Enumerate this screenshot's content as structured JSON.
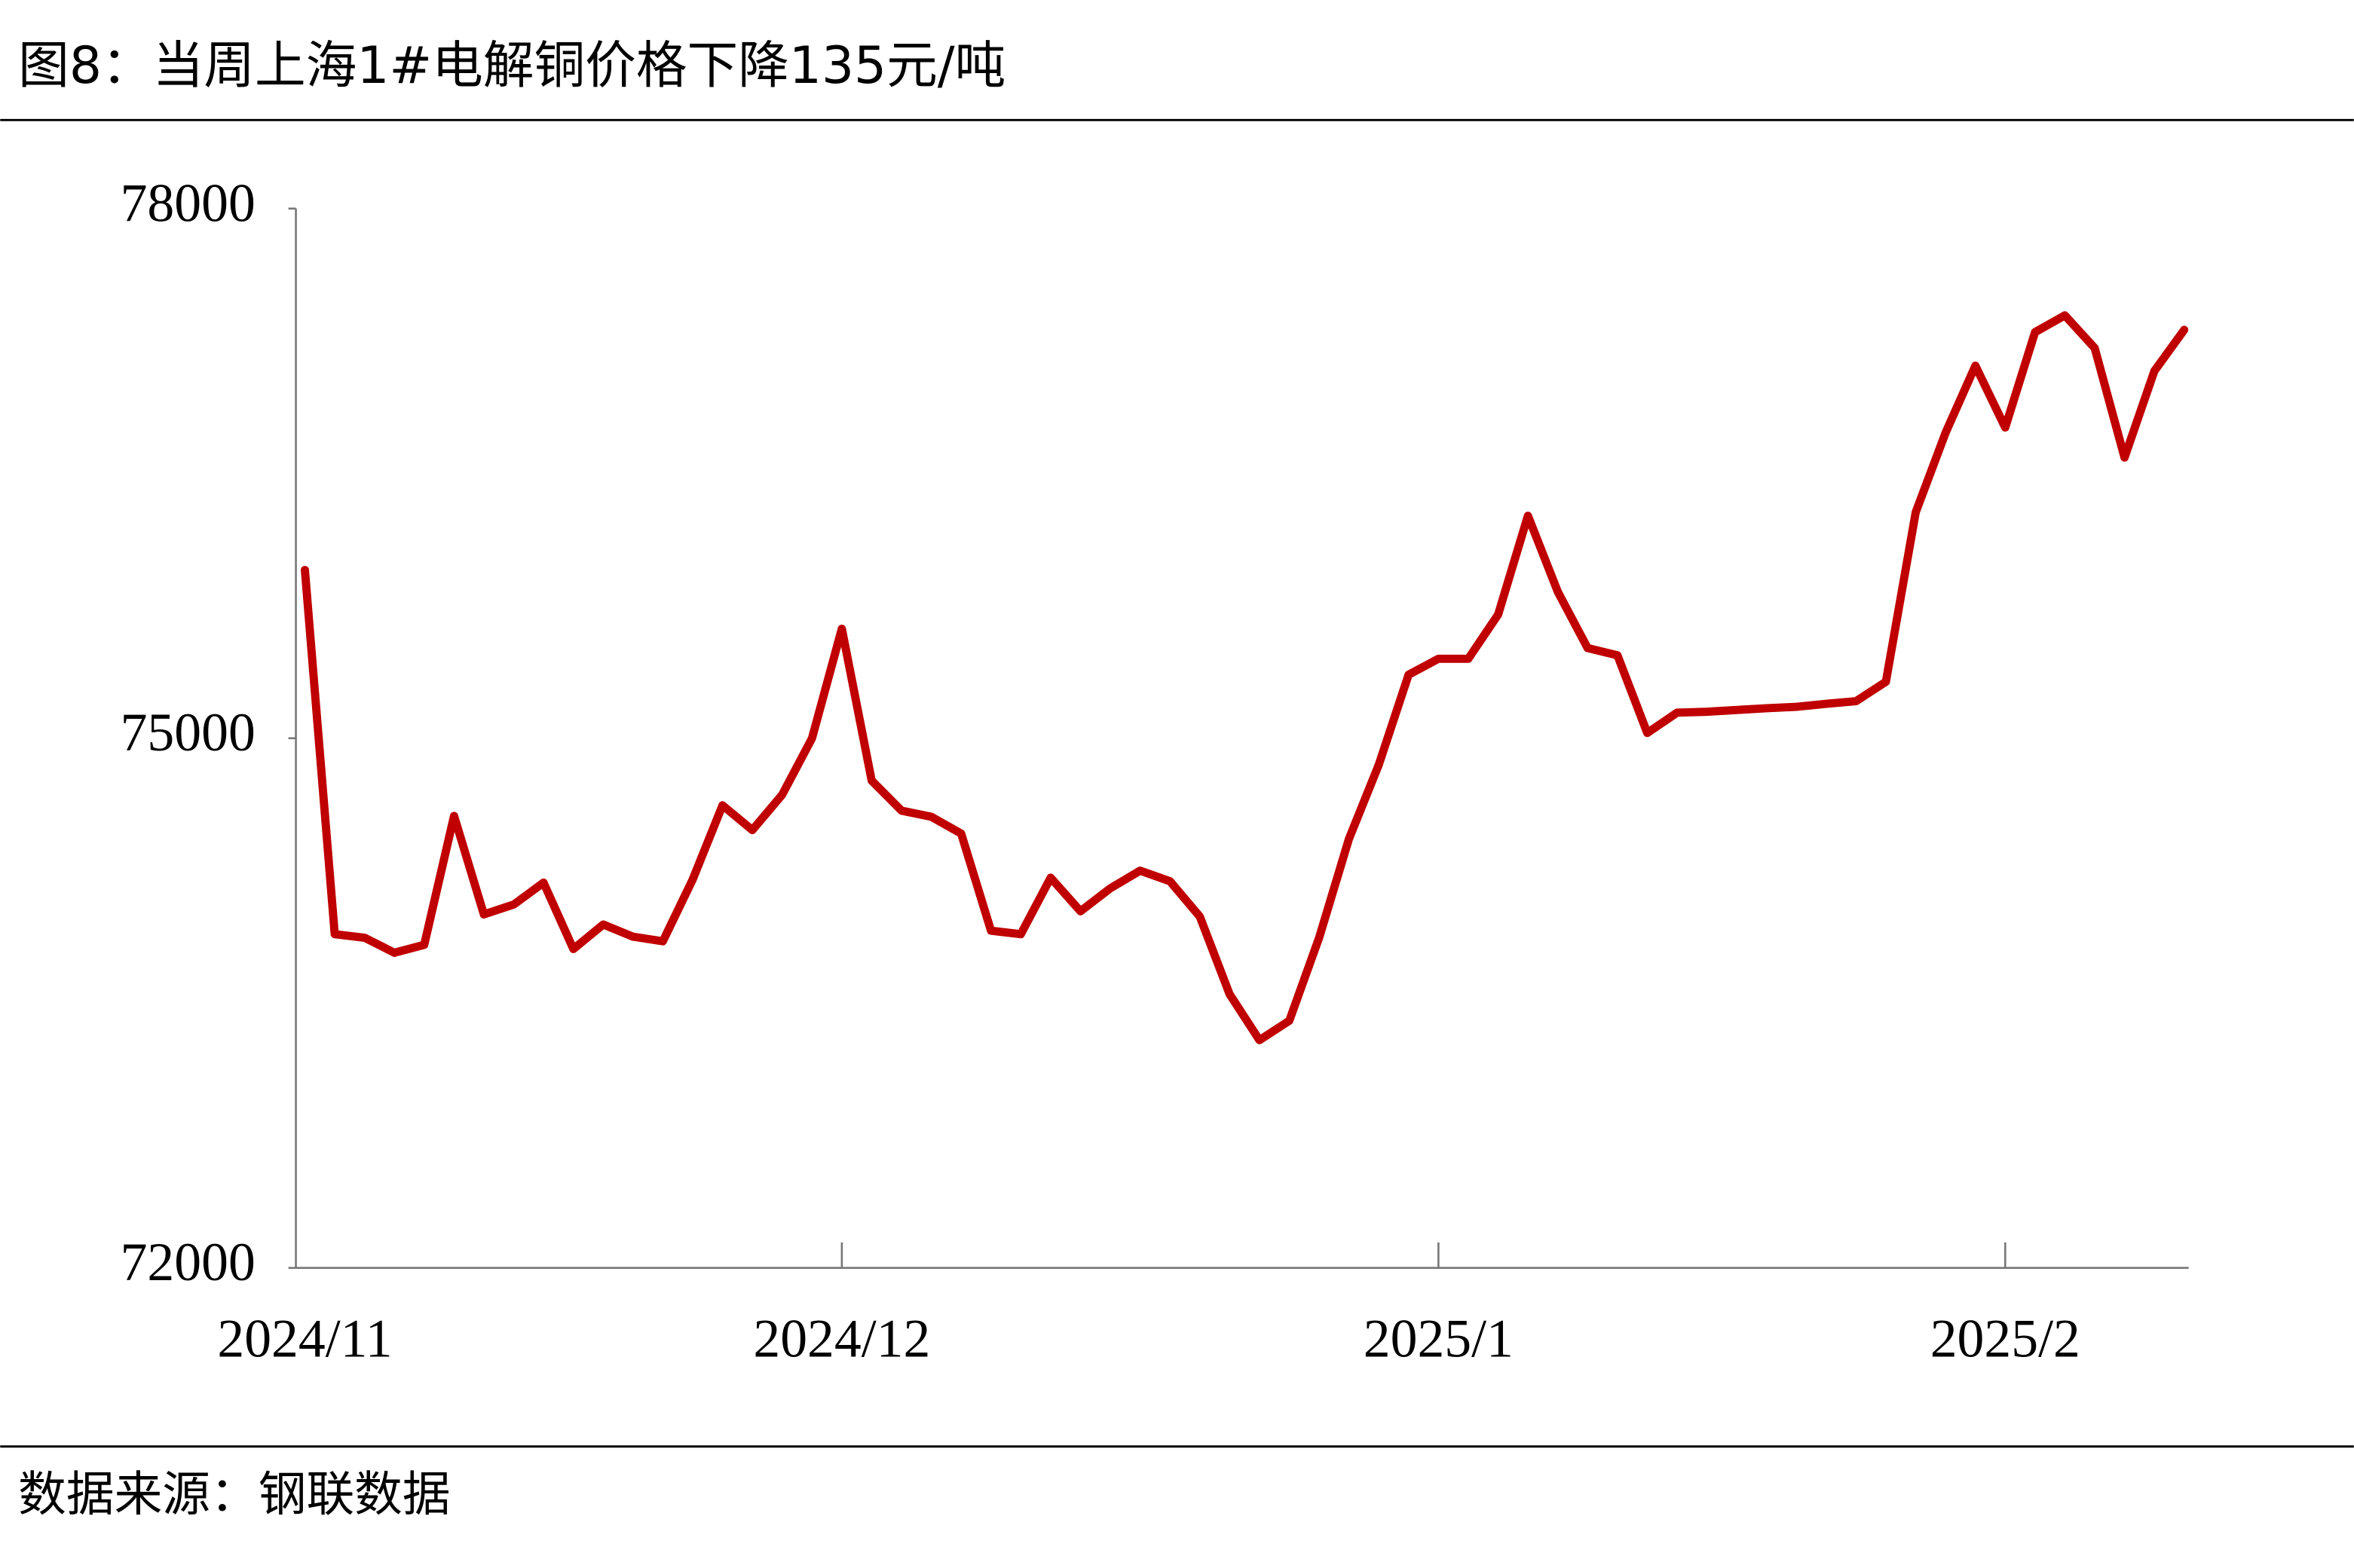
{
  "chart_data": {
    "type": "line",
    "title": "图8：当周上海1#电解铜价格下降135元/吨",
    "source": "数据来源：钢联数据",
    "categories": [
      "2024/11",
      null,
      null,
      null,
      null,
      null,
      null,
      null,
      null,
      null,
      null,
      null,
      null,
      null,
      null,
      null,
      null,
      null,
      "2024/12",
      null,
      null,
      null,
      null,
      null,
      null,
      null,
      null,
      null,
      null,
      null,
      null,
      null,
      null,
      null,
      null,
      null,
      null,
      null,
      "2025/1",
      null,
      null,
      null,
      null,
      null,
      null,
      null,
      null,
      null,
      null,
      null,
      null,
      null,
      null,
      null,
      null,
      null,
      null,
      "2025/2",
      null,
      null,
      null,
      null,
      null,
      null
    ],
    "series": [
      {
        "name": "上海1#电解铜",
        "color": "#c00000",
        "values": [
          75953,
          73890,
          73870,
          73785,
          73830,
          74560,
          74002,
          74058,
          74182,
          73806,
          73945,
          73876,
          73850,
          74200,
          74620,
          74480,
          74680,
          75000,
          75620,
          74760,
          74590,
          74555,
          74460,
          73910,
          73890,
          74210,
          74020,
          74150,
          74250,
          74190,
          73990,
          73550,
          73290,
          73400,
          73870,
          74430,
          74850,
          75360,
          75450,
          75450,
          75700,
          76260,
          75830,
          75511,
          75470,
          75030,
          75145,
          75150,
          75160,
          75170,
          75178,
          75195,
          75210,
          75320,
          76280,
          76730,
          77110,
          76760,
          77300,
          77395,
          77210,
          76590,
          77080,
          77313
        ]
      }
    ],
    "ylim": [
      72000,
      78000
    ],
    "yticks": [
      72000,
      75000,
      78000
    ],
    "grid": false,
    "legend": false
  }
}
